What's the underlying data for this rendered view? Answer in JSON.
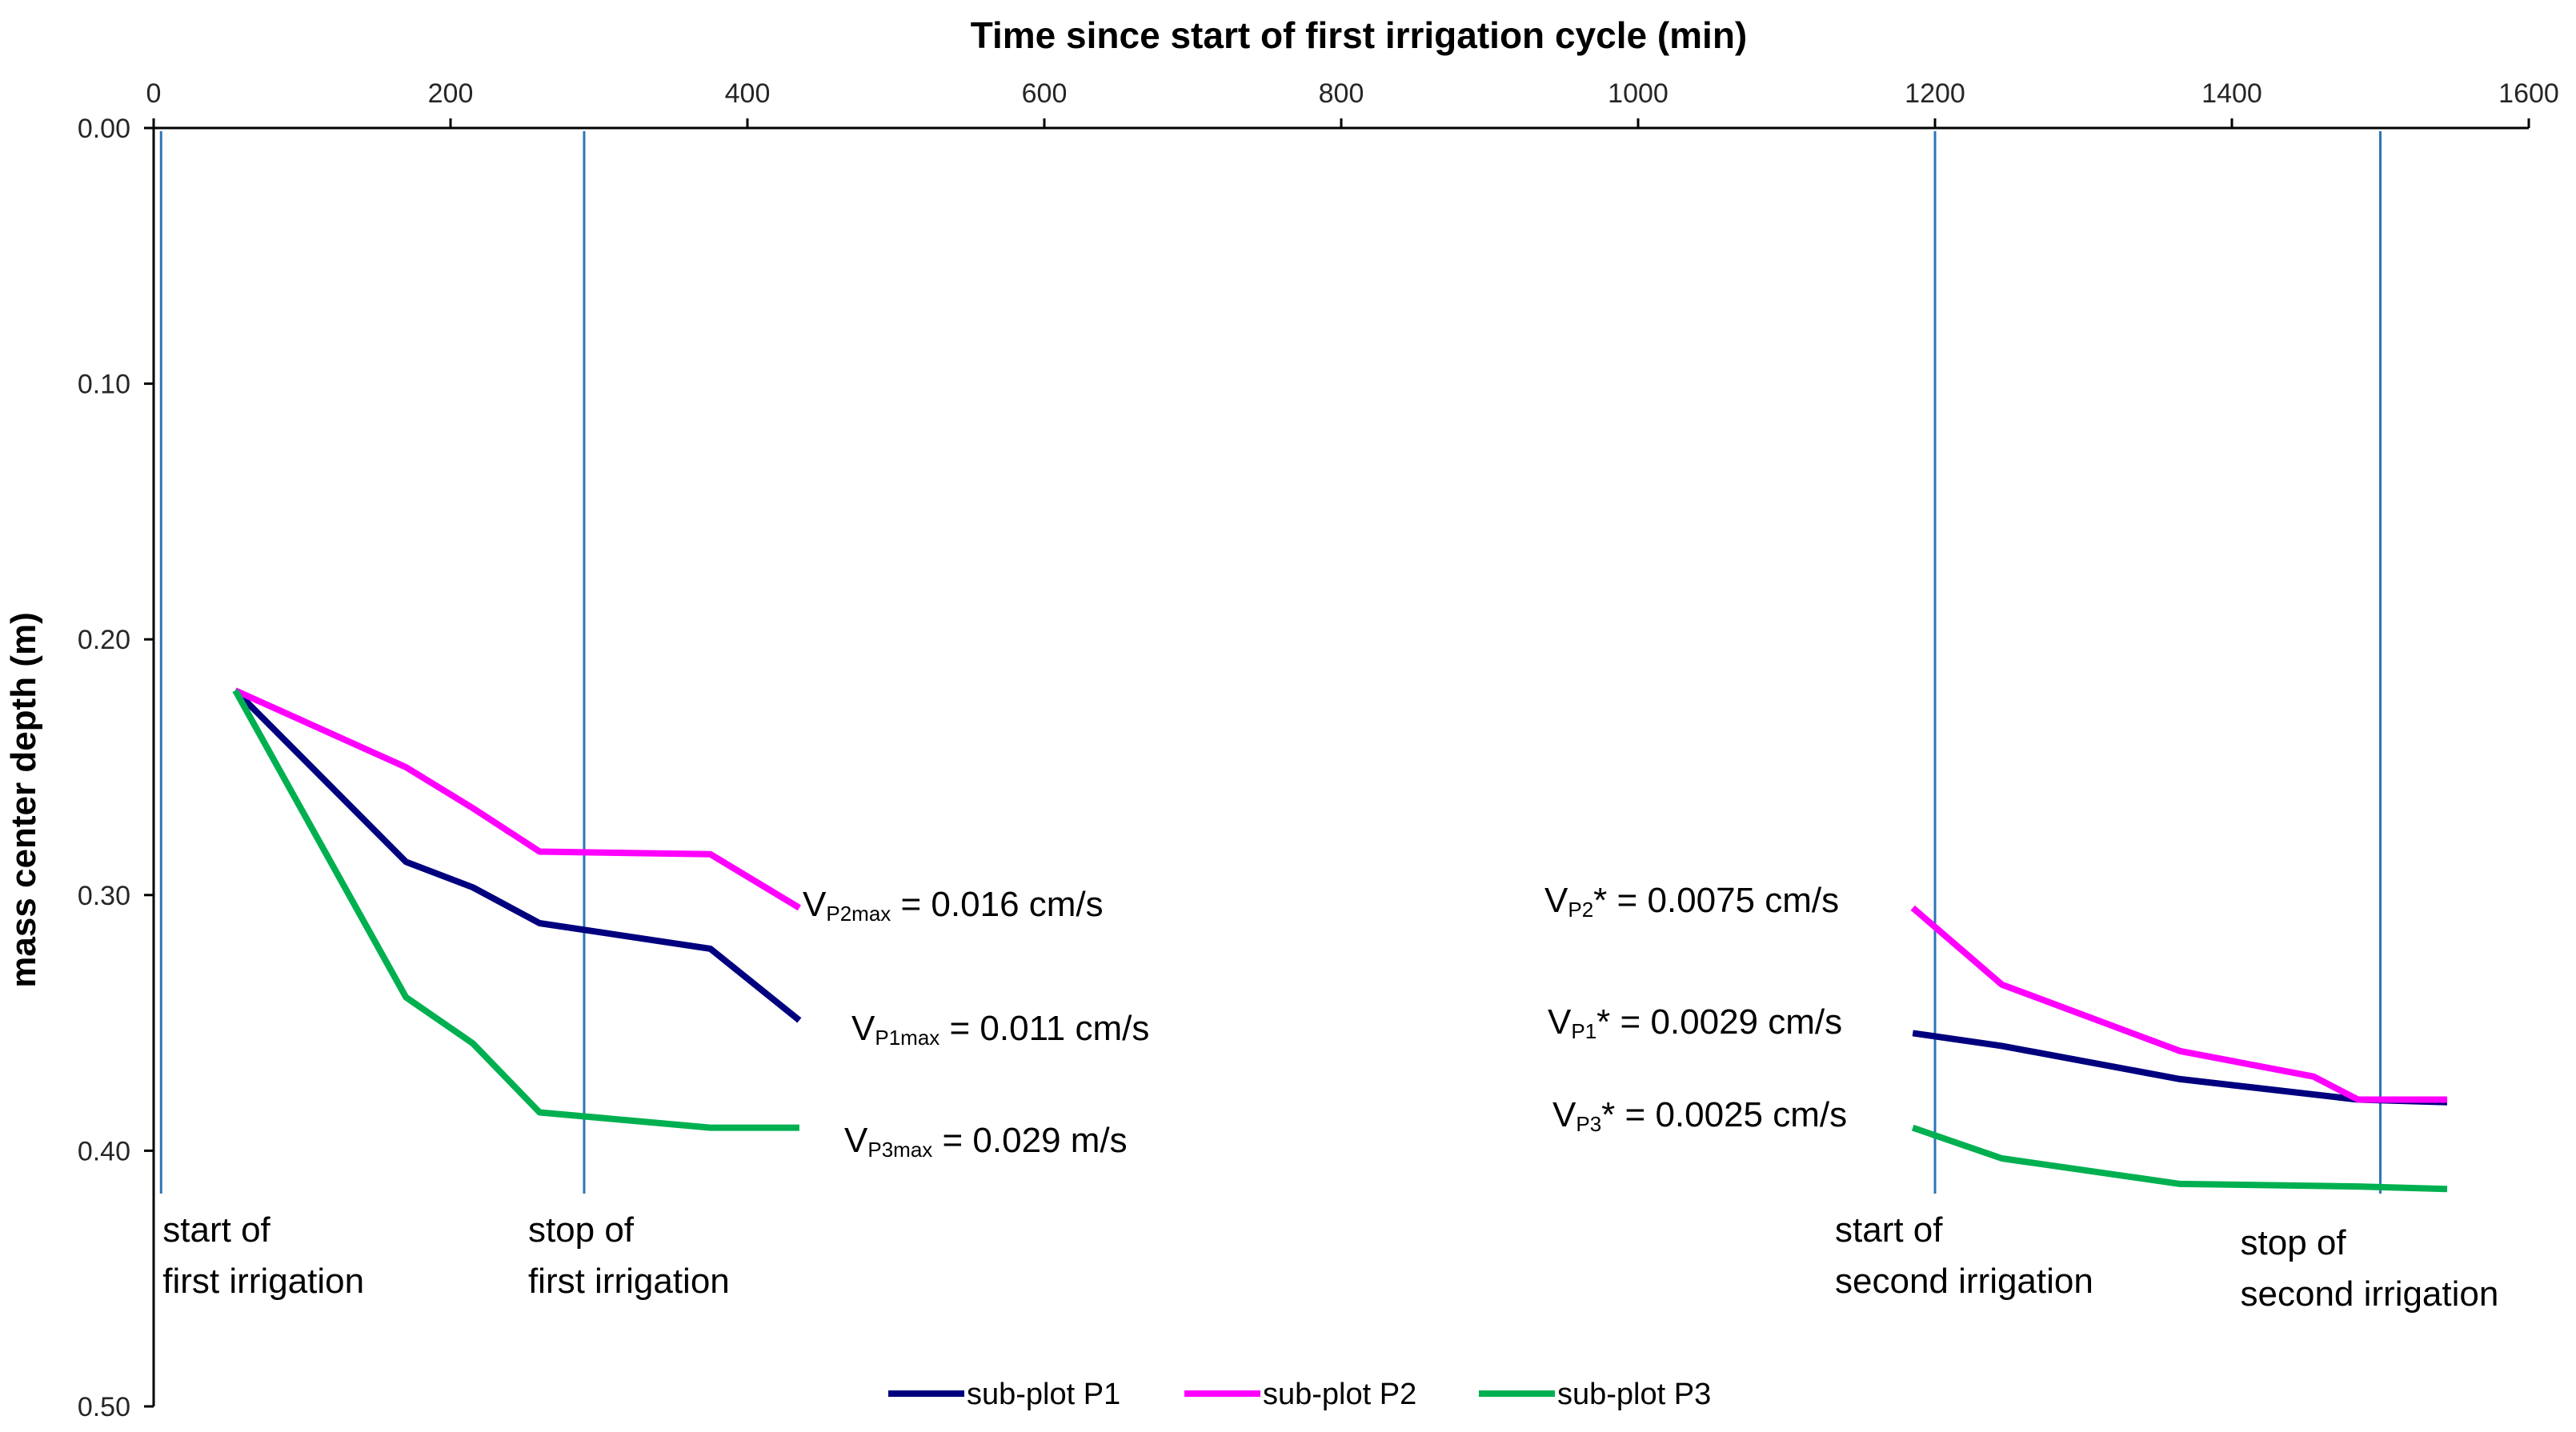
{
  "chart_data": {
    "type": "line",
    "title": "Time since start of first irrigation cycle (min)",
    "xlabel": "Time since start of first irrigation cycle (min)",
    "ylabel": "mass center depth (m)",
    "xlim": [
      0,
      1600
    ],
    "ylim": [
      0,
      0.5
    ],
    "x_ticks": [
      0,
      200,
      400,
      600,
      800,
      1000,
      1200,
      1400,
      1600
    ],
    "x_tick_labels": [
      "0",
      "200",
      "400",
      "600",
      "800",
      "1000",
      "1200",
      "1400",
      "1600"
    ],
    "y_ticks": [
      0,
      0.1,
      0.2,
      0.3,
      0.4,
      0.5
    ],
    "y_tick_labels": [
      "0.00",
      "0.10",
      "0.20",
      "0.30",
      "0.40",
      "0.50"
    ],
    "y_inverted": true,
    "x_axis_position": "top",
    "grid": false,
    "legend_position": "bottom-center",
    "series": [
      {
        "name": "sub-plot P1",
        "color": "#00007f",
        "segments": [
          [
            [
              55,
              0.22
            ],
            [
              170,
              0.287
            ],
            [
              215,
              0.297
            ],
            [
              260,
              0.311
            ],
            [
              375,
              0.321
            ],
            [
              435,
              0.349
            ]
          ],
          [
            [
              1185,
              0.354
            ],
            [
              1245,
              0.359
            ],
            [
              1365,
              0.372
            ],
            [
              1485,
              0.38
            ],
            [
              1545,
              0.381
            ]
          ]
        ]
      },
      {
        "name": "sub-plot P2",
        "color": "#ff00ff",
        "segments": [
          [
            [
              55,
              0.22
            ],
            [
              170,
              0.25
            ],
            [
              215,
              0.266
            ],
            [
              260,
              0.283
            ],
            [
              375,
              0.284
            ],
            [
              435,
              0.305
            ]
          ],
          [
            [
              1185,
              0.305
            ],
            [
              1245,
              0.335
            ],
            [
              1365,
              0.361
            ],
            [
              1455,
              0.371
            ],
            [
              1485,
              0.38
            ],
            [
              1545,
              0.38
            ]
          ]
        ]
      },
      {
        "name": "sub-plot P3",
        "color": "#00b050",
        "segments": [
          [
            [
              55,
              0.22
            ],
            [
              170,
              0.34
            ],
            [
              215,
              0.358
            ],
            [
              260,
              0.385
            ],
            [
              375,
              0.391
            ],
            [
              435,
              0.391
            ]
          ],
          [
            [
              1185,
              0.391
            ],
            [
              1245,
              0.403
            ],
            [
              1365,
              0.413
            ],
            [
              1485,
              0.414
            ],
            [
              1545,
              0.415
            ]
          ]
        ]
      }
    ],
    "vertical_lines": [
      {
        "x": 5,
        "color": "#2e75b6",
        "label": [
          "start of",
          "first irrigation"
        ]
      },
      {
        "x": 290,
        "color": "#2e75b6",
        "label": [
          "stop of",
          "first irrigation"
        ]
      },
      {
        "x": 1200,
        "color": "#2e75b6",
        "label": [
          "start of",
          "second irrigation"
        ]
      },
      {
        "x": 1500,
        "color": "#2e75b6",
        "label": [
          "stop of",
          "second irrigation"
        ]
      }
    ],
    "annotations": [
      {
        "main": "V",
        "sub": "P2max",
        "rest": " = 0.016 cm/s"
      },
      {
        "main": "V",
        "sub": "P1max",
        "rest": " = 0.011 cm/s"
      },
      {
        "main": "V",
        "sub": "P3max",
        "rest": " =  0.029 m/s"
      },
      {
        "main": "V",
        "sub": "P2",
        "rest": "* = 0.0075 cm/s"
      },
      {
        "main": "V",
        "sub": "P1",
        "rest": "* = 0.0029 cm/s"
      },
      {
        "main": "V",
        "sub": "P3",
        "rest": "* = 0.0025 cm/s"
      }
    ]
  }
}
